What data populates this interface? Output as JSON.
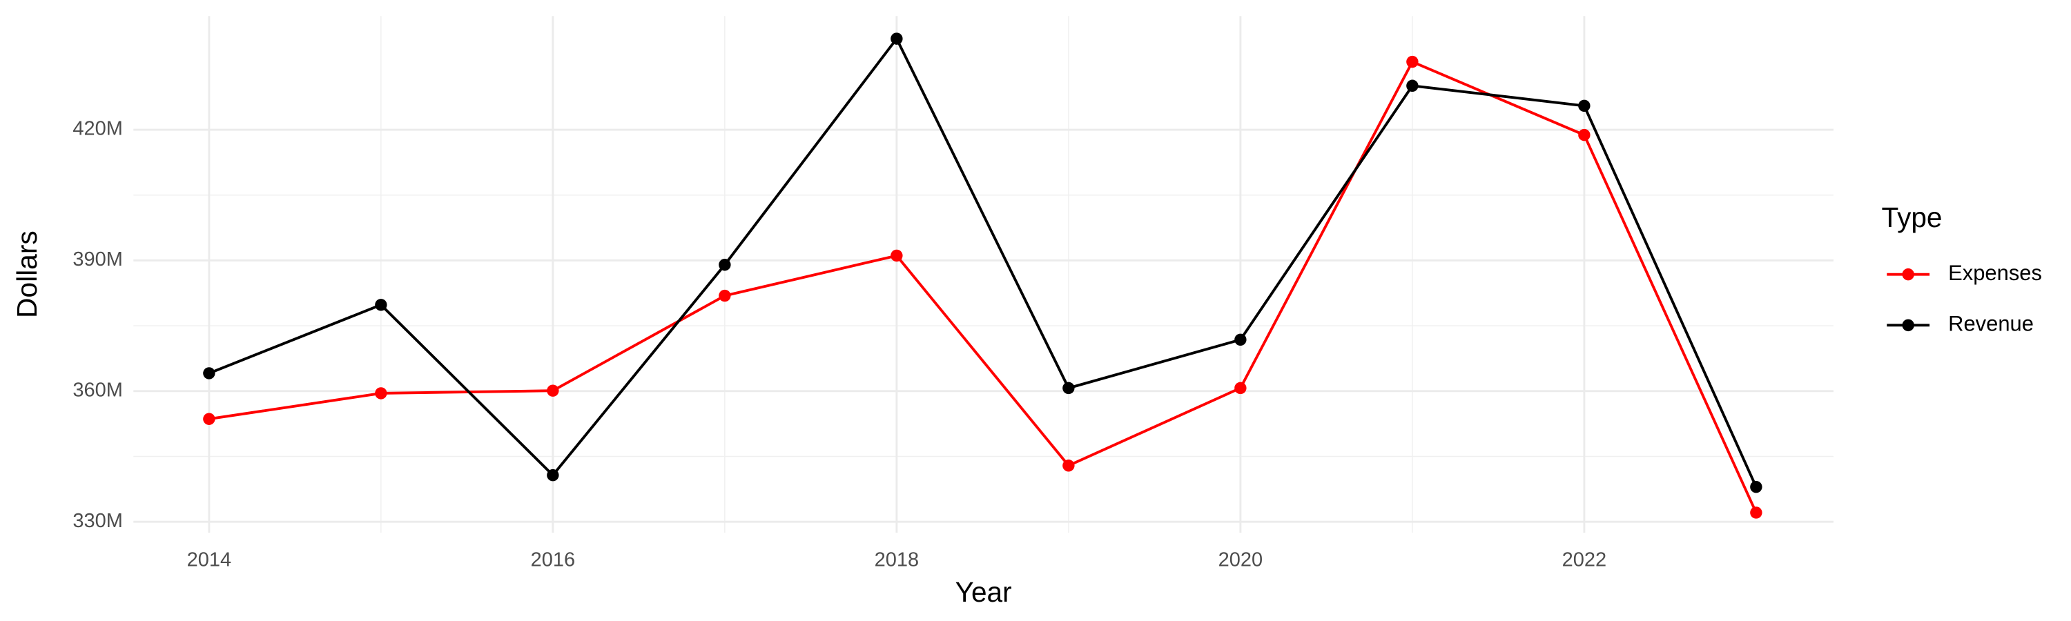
{
  "chart_data": {
    "type": "line",
    "x_label": "Year",
    "y_label": "Dollars",
    "legend_title": "Type",
    "legend_position": "right",
    "x": [
      2014,
      2015,
      2016,
      2017,
      2018,
      2019,
      2020,
      2021,
      2022,
      2023
    ],
    "series": [
      {
        "name": "Expenses",
        "color": "#ff0000",
        "values": [
          353600000,
          359500000,
          360100000,
          381900000,
          391100000,
          342900000,
          360700000,
          435600000,
          418800000,
          332100000
        ]
      },
      {
        "name": "Revenue",
        "color": "#000000",
        "values": [
          364100000,
          379800000,
          340700000,
          389000000,
          440900000,
          360700000,
          371800000,
          430100000,
          425500000,
          338000000
        ]
      }
    ],
    "xlim": [
      2013.56,
      2023.45
    ],
    "xticks": [
      2014,
      2016,
      2018,
      2020,
      2022
    ],
    "ylim": [
      327500000,
      446100000
    ],
    "yticks": [
      {
        "value": 330000000,
        "label": "330M"
      },
      {
        "value": 360000000,
        "label": "360M"
      },
      {
        "value": 390000000,
        "label": "390M"
      },
      {
        "value": 420000000,
        "label": "420M"
      }
    ],
    "grid": true
  }
}
